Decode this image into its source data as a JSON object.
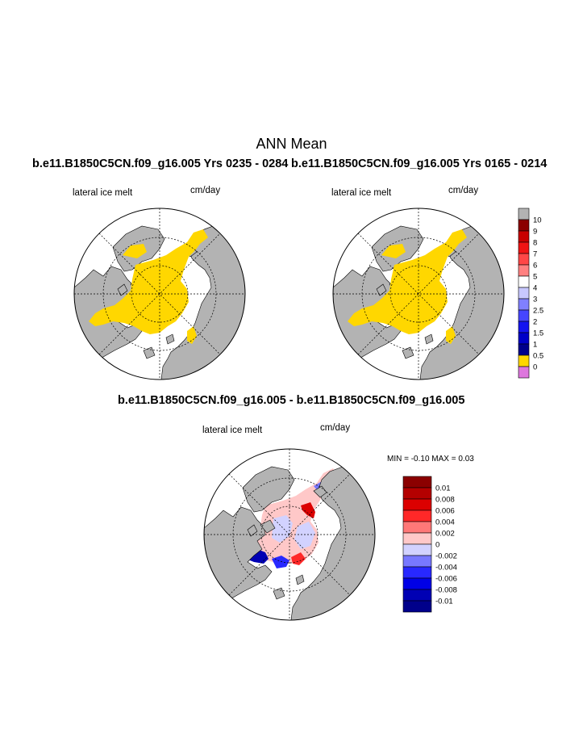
{
  "main_title": "ANN Mean",
  "panels": {
    "left_title": "b.e11.B1850C5CN.f09_g16.005  Yrs 0235 - 0284",
    "right_title": "b.e11.B1850C5CN.f09_g16.005  Yrs 0165 - 0214",
    "diff_title": "b.e11.B1850C5CN.f09_g16.005 - b.e11.B1850C5CN.f09_g16.005",
    "variable": "lateral ice melt",
    "units": "cm/day"
  },
  "diff_stats": {
    "text": "MIN =  -0.10 MAX =   0.03",
    "min": -0.1,
    "max": 0.03
  },
  "top_colorbar": {
    "labels": [
      "10",
      "9",
      "8",
      "7",
      "6",
      "5",
      "4",
      "3",
      "2.5",
      "2",
      "1.5",
      "1",
      "0.5",
      "0"
    ],
    "colors": [
      "#b3b3b3",
      "#8b0000",
      "#c80000",
      "#f01414",
      "#ff4646",
      "#ff8080",
      "#ffffff",
      "#c8c8ff",
      "#8080ff",
      "#4646ff",
      "#1414f0",
      "#0000c8",
      "#00008b",
      "#ffd700",
      "#dd77dd"
    ]
  },
  "diff_colorbar": {
    "labels": [
      "0.01",
      "0.008",
      "0.006",
      "0.004",
      "0.002",
      "0",
      "-0.002",
      "-0.004",
      "-0.006",
      "-0.008",
      "-0.01"
    ],
    "colors": [
      "#8b0000",
      "#b40000",
      "#dc0000",
      "#ff2828",
      "#ff7878",
      "#ffc8c8",
      "#d2d2ff",
      "#7878ff",
      "#2828ff",
      "#0000e6",
      "#0000b4",
      "#00008b"
    ]
  },
  "map_colors": {
    "land": "#b3b3b3",
    "ice_melt": "#ffd700",
    "ocean": "#ffffff"
  }
}
